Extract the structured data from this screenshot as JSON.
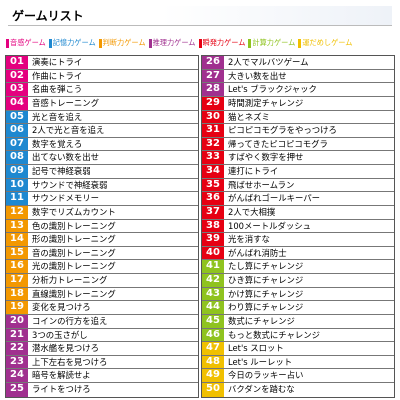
{
  "header": {
    "title": "ゲームリスト"
  },
  "legend": [
    {
      "label": "音感ゲーム",
      "color": "#e4007f"
    },
    {
      "label": "記憶力ゲーム",
      "color": "#1e88d0"
    },
    {
      "label": "判断力ゲーム",
      "color": "#f39800"
    },
    {
      "label": "推理力ゲーム",
      "color": "#a0308f"
    },
    {
      "label": "瞬発力ゲーム",
      "color": "#e60012"
    },
    {
      "label": "計算力ゲーム",
      "color": "#8fc31f"
    },
    {
      "label": "運だめしゲーム",
      "color": "#f0c000"
    }
  ],
  "rows": [
    {
      "no": "01",
      "title": "演奏にトライ",
      "category": 0
    },
    {
      "no": "02",
      "title": "作曲にトライ",
      "category": 0
    },
    {
      "no": "03",
      "title": "名曲を弾こう",
      "category": 0
    },
    {
      "no": "04",
      "title": "音感トレーニング",
      "category": 0
    },
    {
      "no": "05",
      "title": "光と音を追え",
      "category": 1
    },
    {
      "no": "06",
      "title": "2人で光と音を追え",
      "category": 1
    },
    {
      "no": "07",
      "title": "数字を覚えろ",
      "category": 1
    },
    {
      "no": "08",
      "title": "出てない数を出せ",
      "category": 1
    },
    {
      "no": "09",
      "title": "記号で神経衰弱",
      "category": 1
    },
    {
      "no": "10",
      "title": "サウンドで神経衰弱",
      "category": 1
    },
    {
      "no": "11",
      "title": "サウンドメモリー",
      "category": 1
    },
    {
      "no": "12",
      "title": "数字でリズムカウント",
      "category": 2
    },
    {
      "no": "13",
      "title": "色の識別トレーニング",
      "category": 2
    },
    {
      "no": "14",
      "title": "形の識別トレーニング",
      "category": 2
    },
    {
      "no": "15",
      "title": "音の識別トレーニング",
      "category": 2
    },
    {
      "no": "16",
      "title": "光の識別トレーニング",
      "category": 2
    },
    {
      "no": "17",
      "title": "分析力トレーニング",
      "category": 2
    },
    {
      "no": "18",
      "title": "直線識別トレーニング",
      "category": 2
    },
    {
      "no": "19",
      "title": "変化を見つけろ",
      "category": 2
    },
    {
      "no": "20",
      "title": "コインの行方を追え",
      "category": 3
    },
    {
      "no": "21",
      "title": "3つの玉さがし",
      "category": 3
    },
    {
      "no": "22",
      "title": "潜水艦を見つけろ",
      "category": 3
    },
    {
      "no": "23",
      "title": "上下左右を見つけろ",
      "category": 3
    },
    {
      "no": "24",
      "title": "暗号を解読せよ",
      "category": 3
    },
    {
      "no": "25",
      "title": "ライトをつけろ",
      "category": 3
    },
    {
      "no": "26",
      "title": "2人でマルバツゲーム",
      "category": 3
    },
    {
      "no": "27",
      "title": "大きい数を出せ",
      "category": 3
    },
    {
      "no": "28",
      "title": "Let's ブラックジャック",
      "category": 3
    },
    {
      "no": "29",
      "title": "時間測定チャレンジ",
      "category": 4
    },
    {
      "no": "30",
      "title": "猫とネズミ",
      "category": 4
    },
    {
      "no": "31",
      "title": "ピコピコモグラをやっつけろ",
      "category": 4
    },
    {
      "no": "32",
      "title": "帰ってきたピコピコモグラ",
      "category": 4
    },
    {
      "no": "33",
      "title": "すばやく数字を押せ",
      "category": 4
    },
    {
      "no": "34",
      "title": "連打にトライ",
      "category": 4
    },
    {
      "no": "35",
      "title": "飛ばせホームラン",
      "category": 4
    },
    {
      "no": "36",
      "title": "がんばれゴールキーパー",
      "category": 4
    },
    {
      "no": "37",
      "title": "2人で大相撲",
      "category": 4
    },
    {
      "no": "38",
      "title": "100メートルダッシュ",
      "category": 4
    },
    {
      "no": "39",
      "title": "光を消すな",
      "category": 4
    },
    {
      "no": "40",
      "title": "がんばれ消防士",
      "category": 4
    },
    {
      "no": "41",
      "title": "たし算にチャレンジ",
      "category": 5
    },
    {
      "no": "42",
      "title": "ひき算にチャレンジ",
      "category": 5
    },
    {
      "no": "43",
      "title": "かけ算にチャレンジ",
      "category": 5
    },
    {
      "no": "44",
      "title": "わり算にチャレンジ",
      "category": 5
    },
    {
      "no": "45",
      "title": "数式にチャレンジ",
      "category": 5
    },
    {
      "no": "46",
      "title": "もっと数式にチャレンジ",
      "category": 5
    },
    {
      "no": "47",
      "title": "Let's スロット",
      "category": 6
    },
    {
      "no": "48",
      "title": "Let's ルーレット",
      "category": 6
    },
    {
      "no": "49",
      "title": "今日のラッキー占い",
      "category": 6
    },
    {
      "no": "50",
      "title": "バクダンを踏むな",
      "category": 6
    }
  ]
}
